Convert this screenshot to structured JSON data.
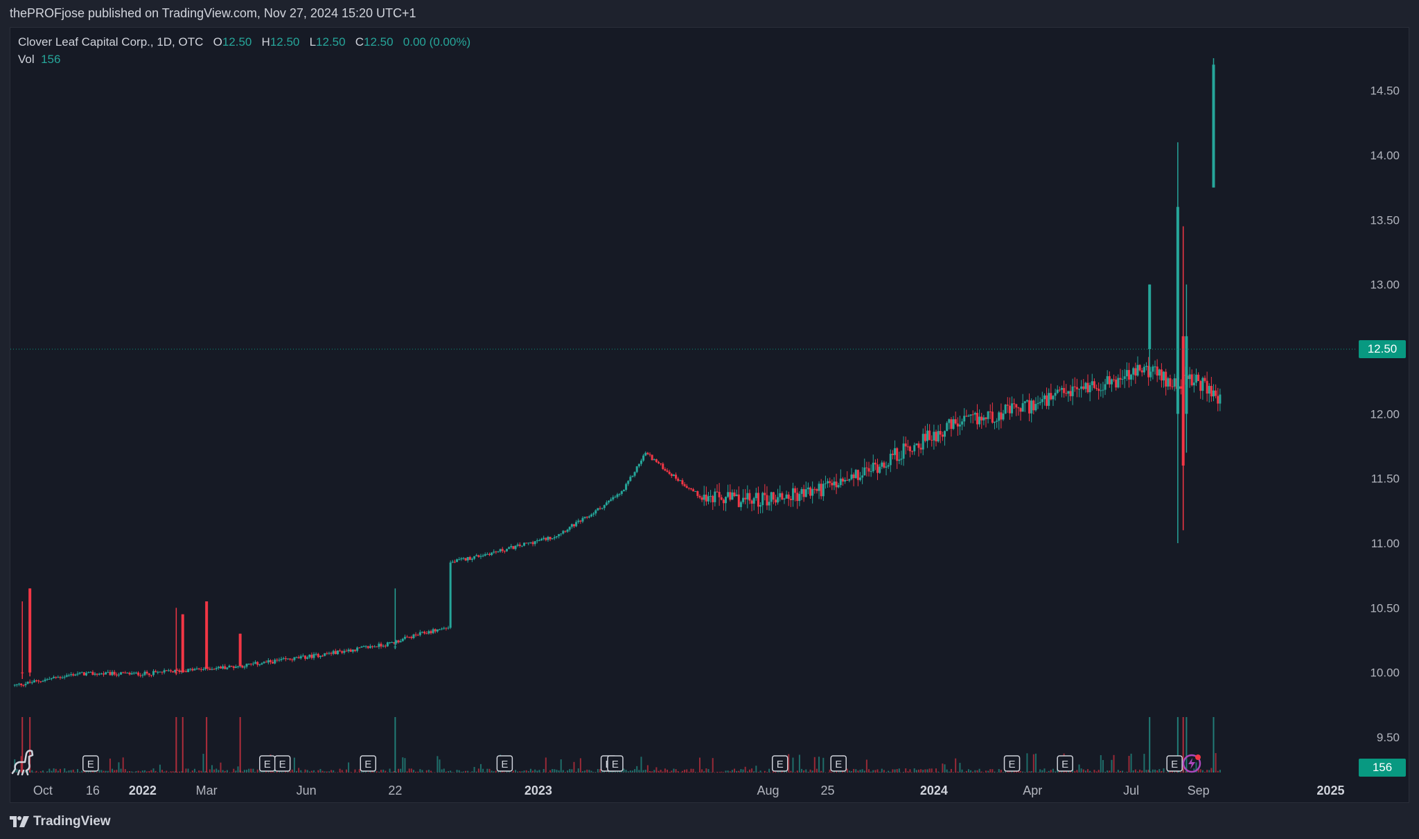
{
  "header": {
    "publish_text": "thePROFjose published on TradingView.com, Nov 27, 2024 15:20 UTC+1"
  },
  "legend": {
    "symbol": "Clover Leaf Capital Corp., 1D, OTC",
    "open_label": "O",
    "open": "12.50",
    "high_label": "H",
    "high": "12.50",
    "low_label": "L",
    "low": "12.50",
    "close_label": "C",
    "close": "12.50",
    "change": "0.00 (0.00%)",
    "vol_label": "Vol",
    "vol": "156"
  },
  "footer": {
    "brand": "TradingView"
  },
  "icons": {
    "logo": "tradingview-logo-icon",
    "dino": "dino-icon",
    "flash": "flash-icon"
  },
  "colors": {
    "up": "#26a69a",
    "down": "#f23645",
    "background": "#161a25",
    "text": "#b2b5be",
    "price_line": "#089981"
  },
  "chart_data": {
    "type": "candlestick",
    "y_axis": {
      "side": "right",
      "ticks": [
        9.5,
        10.0,
        10.5,
        11.0,
        11.5,
        12.0,
        12.5,
        13.0,
        13.5,
        14.0,
        14.5
      ],
      "tick_labels": [
        "9.50",
        "10.00",
        "10.50",
        "11.00",
        "11.50",
        "12.00",
        "12.50",
        "13.00",
        "13.50",
        "14.00",
        "14.50"
      ],
      "range": [
        9.3,
        14.85
      ]
    },
    "x_axis": {
      "range": [
        "2021-09-01",
        "2025-01-25"
      ],
      "ticks": [
        {
          "date": "2021-10-01",
          "label": "Oct",
          "bold": false
        },
        {
          "date": "2021-11-16",
          "label": "16",
          "bold": false
        },
        {
          "date": "2022-01-01",
          "label": "2022",
          "bold": true
        },
        {
          "date": "2022-03-01",
          "label": "Mar",
          "bold": false
        },
        {
          "date": "2022-06-01",
          "label": "Jun",
          "bold": false
        },
        {
          "date": "2022-08-22",
          "label": "22",
          "bold": false
        },
        {
          "date": "2023-01-01",
          "label": "2023",
          "bold": true
        },
        {
          "date": "2023-08-01",
          "label": "Aug",
          "bold": false
        },
        {
          "date": "2023-09-25",
          "label": "25",
          "bold": false
        },
        {
          "date": "2024-01-01",
          "label": "2024",
          "bold": true
        },
        {
          "date": "2024-04-01",
          "label": "Apr",
          "bold": false
        },
        {
          "date": "2024-07-01",
          "label": "Jul",
          "bold": false
        },
        {
          "date": "2024-09-01",
          "label": "Sep",
          "bold": false
        },
        {
          "date": "2025-01-01",
          "label": "2025",
          "bold": true
        }
      ]
    },
    "last_price": 12.5,
    "last_price_label": "12.50",
    "volume_label": "156",
    "earnings_markers": {
      "label": "E",
      "dates": [
        "2021-11-14",
        "2022-04-26",
        "2022-05-10",
        "2022-07-28",
        "2022-12-01",
        "2023-03-07",
        "2023-03-13",
        "2023-08-12",
        "2023-10-05",
        "2024-03-13",
        "2024-05-01",
        "2024-08-10"
      ]
    },
    "spike_bars": [
      {
        "date": "2021-09-12",
        "open": 10.0,
        "high": 10.55,
        "low": 9.95,
        "close": 10.0,
        "dir": "down"
      },
      {
        "date": "2021-09-19",
        "open": 10.65,
        "high": 10.65,
        "low": 9.97,
        "close": 10.0,
        "dir": "down"
      },
      {
        "date": "2022-02-01",
        "open": 10.0,
        "high": 10.5,
        "low": 9.98,
        "close": 10.0,
        "dir": "down"
      },
      {
        "date": "2022-02-07",
        "open": 10.45,
        "high": 10.45,
        "low": 10.0,
        "close": 10.0,
        "dir": "down"
      },
      {
        "date": "2022-03-01",
        "open": 10.55,
        "high": 10.55,
        "low": 10.03,
        "close": 10.03,
        "dir": "down"
      },
      {
        "date": "2022-04-01",
        "open": 10.3,
        "high": 10.3,
        "low": 10.05,
        "close": 10.05,
        "dir": "down"
      },
      {
        "date": "2022-08-22",
        "open": 10.2,
        "high": 10.65,
        "low": 10.18,
        "close": 10.2,
        "dir": "up"
      },
      {
        "date": "2024-07-18",
        "open": 12.5,
        "high": 13.0,
        "low": 12.3,
        "close": 13.0,
        "dir": "up"
      },
      {
        "date": "2024-08-13",
        "open": 12.0,
        "high": 14.1,
        "low": 11.0,
        "close": 13.6,
        "dir": "up"
      },
      {
        "date": "2024-08-18",
        "open": 12.6,
        "high": 13.45,
        "low": 11.1,
        "close": 11.6,
        "dir": "down"
      },
      {
        "date": "2024-08-21",
        "open": 12.0,
        "high": 13.0,
        "low": 11.7,
        "close": 12.6,
        "dir": "up"
      },
      {
        "date": "2024-09-15",
        "open": 13.75,
        "high": 14.75,
        "low": 13.75,
        "close": 14.7,
        "dir": "up"
      }
    ],
    "series_anchors": [
      {
        "date": "2021-09-05",
        "price": 9.9
      },
      {
        "date": "2021-11-01",
        "price": 9.99
      },
      {
        "date": "2022-01-01",
        "price": 9.99
      },
      {
        "date": "2022-04-01",
        "price": 10.05
      },
      {
        "date": "2022-06-01",
        "price": 10.12
      },
      {
        "date": "2022-08-15",
        "price": 10.22
      },
      {
        "date": "2022-09-15",
        "price": 10.3
      },
      {
        "date": "2022-10-10",
        "price": 10.35
      },
      {
        "date": "2022-10-12",
        "price": 10.85
      },
      {
        "date": "2022-12-01",
        "price": 10.95
      },
      {
        "date": "2023-01-15",
        "price": 11.05
      },
      {
        "date": "2023-02-15",
        "price": 11.2
      },
      {
        "date": "2023-03-20",
        "price": 11.4
      },
      {
        "date": "2023-04-10",
        "price": 11.7
      },
      {
        "date": "2023-05-01",
        "price": 11.55
      },
      {
        "date": "2023-06-01",
        "price": 11.35
      },
      {
        "date": "2023-07-15",
        "price": 11.33
      },
      {
        "date": "2023-09-01",
        "price": 11.38
      },
      {
        "date": "2023-10-15",
        "price": 11.48
      },
      {
        "date": "2023-12-01",
        "price": 11.7
      },
      {
        "date": "2024-01-15",
        "price": 11.9
      },
      {
        "date": "2024-03-01",
        "price": 12.0
      },
      {
        "date": "2024-04-15",
        "price": 12.1
      },
      {
        "date": "2024-05-15",
        "price": 12.2
      },
      {
        "date": "2024-06-15",
        "price": 12.25
      },
      {
        "date": "2024-07-15",
        "price": 12.35
      },
      {
        "date": "2024-08-05",
        "price": 12.25
      },
      {
        "date": "2024-09-01",
        "price": 12.25
      },
      {
        "date": "2024-09-22",
        "price": 12.1
      }
    ]
  }
}
